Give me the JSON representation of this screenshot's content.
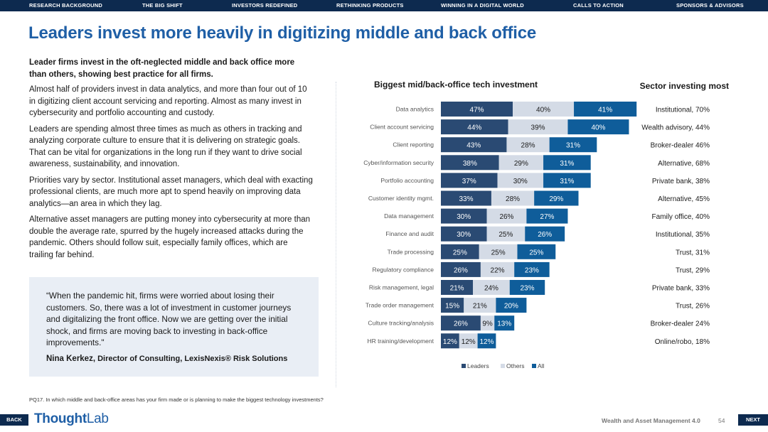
{
  "nav": {
    "items": [
      "RESEARCH BACKGROUND",
      "THE BIG SHIFT",
      "INVESTORS REDEFINED",
      "RETHINKING PRODUCTS",
      "WINNING IN A DIGITAL WORLD",
      "CALLS TO ACTION",
      "SPONSORS & ADVISORS"
    ]
  },
  "page": {
    "title": "Leaders invest more heavily in digitizing middle and back office"
  },
  "body": {
    "lead": "Leader firms invest in the oft-neglected middle and back office more than others, showing best practice for all firms.",
    "paragraphs": [
      "Almost half of providers invest in data analytics, and more than four out of 10 in digitizing client account servicing and reporting. Almost as many invest in cybersecurity and portfolio accounting and custody.",
      "Leaders are spending almost three times as much as others in tracking and analyzing corporate culture to ensure that it is delivering on strategic goals. That can be vital for organizations in the long run if they want to drive social awareness, sustainability, and innovation.",
      "Priorities vary by sector. Institutional asset managers, which deal with exacting professional clients, are much more apt to spend heavily on improving data analytics—an area in which they lag.",
      "Alternative asset managers are putting money into cybersecurity at more than double the average rate, spurred by the hugely increased attacks during the pandemic. Others should follow suit, especially family offices, which are trailing far behind."
    ]
  },
  "quote": {
    "text": "“When the pandemic hit, firms were worried about losing their customers. So, there was a lot of investment in customer journeys and digitalizing the front office. Now we are getting over the initial shock, and firms are moving back to investing in back-office improvements.\"",
    "author_name": "Nina Kerkez,",
    "author_title": "Director of Consulting, LexisNexis® Risk Solutions"
  },
  "footnote": "PQ17.  In which middle and back-office areas has your firm made or is planning to make the biggest technology investments?",
  "footer": {
    "back": "BACK",
    "next": "NEXT",
    "logo_part1": "Thought",
    "logo_part2": "Lab",
    "label": "Wealth and Asset Management 4.0",
    "page": "54"
  },
  "colors": {
    "leaders": "#2a4a73",
    "others": "#d4dbe6",
    "all": "#0f5d9a",
    "title_blue": "#1f5fa6",
    "nav": "#0d2a4f"
  },
  "chart_data": {
    "type": "bar",
    "stacked": true,
    "orientation": "horizontal",
    "title": "Biggest mid/back-office tech investment",
    "sector_title": "Sector investing most",
    "categories": [
      "Data analytics",
      "Client account servicing",
      "Client reporting",
      "Cyber/information security",
      "Portfolio accounting",
      "Customer identity mgmt.",
      "Data management",
      "Finance and audit",
      "Trade processing",
      "Regulatory compliance",
      "Risk management, legal",
      "Trade order management",
      "Culture tracking/analysis",
      "HR training/development"
    ],
    "series": [
      {
        "name": "Leaders",
        "values": [
          47,
          44,
          43,
          38,
          37,
          33,
          30,
          30,
          25,
          26,
          21,
          15,
          26,
          12
        ]
      },
      {
        "name": "Others",
        "values": [
          40,
          39,
          28,
          29,
          30,
          28,
          26,
          25,
          25,
          22,
          24,
          21,
          9,
          12
        ]
      },
      {
        "name": "All",
        "values": [
          41,
          40,
          31,
          31,
          31,
          29,
          27,
          26,
          25,
          23,
          23,
          20,
          13,
          12
        ]
      }
    ],
    "value_labels": {
      "Leaders": [
        "47%",
        "44%",
        "43%",
        "38%",
        "37%",
        "33%",
        "30%",
        "30%",
        "25%",
        "26%",
        "21%",
        "15%",
        "26%",
        "12%"
      ],
      "Others": [
        "40%",
        "39%",
        "28%",
        "29%",
        "30%",
        "28%",
        "26%",
        "25%",
        "25%",
        "22%",
        "24%",
        "21%",
        "9%",
        "12%"
      ],
      "All": [
        "41%",
        "40%",
        "31%",
        "31%",
        "31%",
        "29%",
        "27%",
        "26%",
        "25%",
        "23%",
        "23%",
        "20%",
        "13%",
        "12%"
      ]
    },
    "sector_most": [
      "Institutional, 70%",
      "Wealth advisory, 44%",
      "Broker-dealer 46%",
      "Alternative, 68%",
      "Private bank, 38%",
      "Alternative, 45%",
      "Family office, 40%",
      "Institutional, 35%",
      "Trust, 31%",
      "Trust, 29%",
      "Private bank, 33%",
      "Trust, 26%",
      "Broker-dealer 24%",
      "Online/robo, 18%"
    ],
    "legend": [
      "Leaders",
      "Others",
      "All"
    ],
    "legend_position": "bottom",
    "xlabel": "",
    "ylabel": ""
  }
}
